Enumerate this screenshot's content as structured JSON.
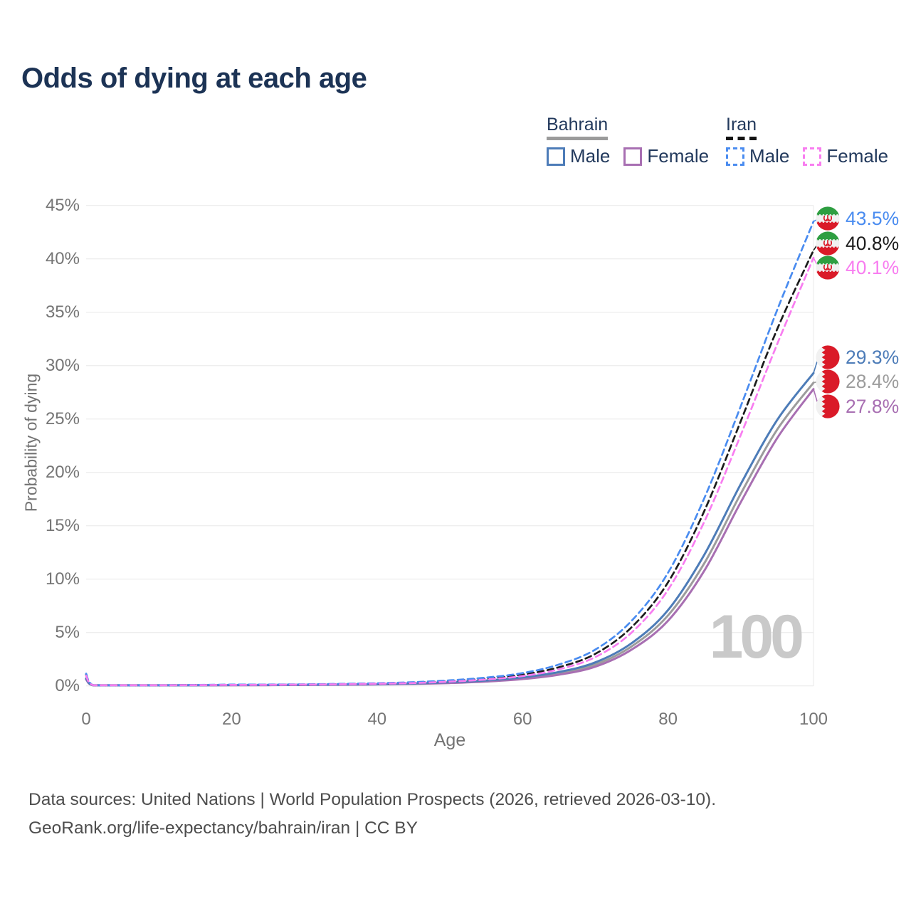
{
  "title": "Odds of dying at each age",
  "watermark_age": "100",
  "legend": {
    "groups": [
      {
        "country": "Bahrain",
        "line_style": "solid",
        "underline_color": "#9b9b9b",
        "items": [
          {
            "label": "Male",
            "color": "#4d7cb8"
          },
          {
            "label": "Female",
            "color": "#a86fb2"
          }
        ]
      },
      {
        "country": "Iran",
        "line_style": "dashed",
        "underline_color": "#141414",
        "items": [
          {
            "label": "Male",
            "color": "#4a8cf0"
          },
          {
            "label": "Female",
            "color": "#f87df0"
          }
        ]
      }
    ]
  },
  "footer": {
    "line1": "Data sources: United Nations | World Population Prospects (2026, retrieved 2026-03-10).",
    "line2": "GeoRank.org/life-expectancy/bahrain/iran | CC BY"
  },
  "colors": {
    "title_text": "#1c3355",
    "axis_text": "#757575",
    "grid": "#e8e8e8",
    "watermark": "#c9c9c9",
    "footer_text": "#4d4d4d"
  },
  "chart_data": {
    "type": "line",
    "title": "Odds of dying at each age",
    "xlabel": "Age",
    "ylabel": "Probability of dying",
    "xlim": [
      0,
      100
    ],
    "ylim_percent": [
      0,
      45
    ],
    "x_ticks": [
      0,
      20,
      40,
      60,
      80,
      100
    ],
    "y_ticks_percent": [
      0,
      5,
      10,
      15,
      20,
      25,
      30,
      35,
      40,
      45
    ],
    "grid": "horizontal",
    "legend_position": "top-right",
    "ages": [
      0,
      1,
      5,
      10,
      15,
      20,
      25,
      30,
      35,
      40,
      45,
      50,
      55,
      60,
      65,
      70,
      75,
      80,
      85,
      90,
      95,
      100
    ],
    "series": [
      {
        "name": "Iran Male",
        "country": "Iran",
        "sex": "male",
        "color": "#4a8cf0",
        "dashed": true,
        "flag": "iran",
        "end_label": "43.5%",
        "end_value_percent": 43.5,
        "values_percent": [
          1.15,
          0.06,
          0.05,
          0.06,
          0.09,
          0.12,
          0.13,
          0.15,
          0.19,
          0.25,
          0.35,
          0.52,
          0.78,
          1.2,
          2.0,
          3.4,
          6.1,
          10.6,
          17.6,
          26.2,
          35.2,
          43.5
        ]
      },
      {
        "name": "Iran Both Sexes",
        "country": "Iran",
        "sex": "both",
        "color": "#1c1c1c",
        "dashed": true,
        "flag": "iran",
        "end_label": "40.8%",
        "end_value_percent": 40.8,
        "values_percent": [
          1.05,
          0.055,
          0.045,
          0.055,
          0.08,
          0.1,
          0.11,
          0.13,
          0.17,
          0.22,
          0.31,
          0.46,
          0.69,
          1.05,
          1.75,
          3.0,
          5.5,
          9.7,
          16.4,
          24.8,
          33.4,
          40.8
        ]
      },
      {
        "name": "Iran Female",
        "country": "Iran",
        "sex": "female",
        "color": "#f87df0",
        "dashed": true,
        "flag": "iran",
        "end_label": "40.1%",
        "end_value_percent": 40.1,
        "values_percent": [
          0.95,
          0.05,
          0.04,
          0.05,
          0.07,
          0.09,
          0.1,
          0.12,
          0.15,
          0.2,
          0.27,
          0.4,
          0.6,
          0.92,
          1.55,
          2.7,
          5.0,
          9.0,
          15.4,
          23.5,
          32.0,
          40.1
        ]
      },
      {
        "name": "Bahrain Male",
        "country": "Bahrain",
        "sex": "male",
        "color": "#4d7cb8",
        "dashed": false,
        "flag": "bahrain",
        "end_label": "29.3%",
        "end_value_percent": 29.3,
        "values_percent": [
          0.7,
          0.04,
          0.03,
          0.04,
          0.06,
          0.08,
          0.09,
          0.11,
          0.13,
          0.17,
          0.23,
          0.34,
          0.51,
          0.8,
          1.3,
          2.2,
          4.0,
          7.1,
          12.3,
          18.9,
          24.9,
          29.3
        ]
      },
      {
        "name": "Bahrain Both Sexes",
        "country": "Bahrain",
        "sex": "both",
        "color": "#9c9c9c",
        "dashed": false,
        "flag": "bahrain",
        "end_label": "28.4%",
        "end_value_percent": 28.4,
        "values_percent": [
          0.65,
          0.035,
          0.028,
          0.035,
          0.05,
          0.07,
          0.08,
          0.1,
          0.12,
          0.15,
          0.21,
          0.3,
          0.46,
          0.72,
          1.18,
          2.0,
          3.7,
          6.6,
          11.5,
          18.0,
          24.0,
          28.4
        ]
      },
      {
        "name": "Bahrain Female",
        "country": "Bahrain",
        "sex": "female",
        "color": "#a86fb2",
        "dashed": false,
        "flag": "bahrain",
        "end_label": "27.8%",
        "end_value_percent": 27.8,
        "values_percent": [
          0.6,
          0.03,
          0.025,
          0.03,
          0.045,
          0.06,
          0.07,
          0.09,
          0.11,
          0.14,
          0.19,
          0.27,
          0.41,
          0.64,
          1.05,
          1.8,
          3.4,
          6.1,
          10.8,
          17.2,
          23.2,
          27.8
        ]
      }
    ]
  }
}
